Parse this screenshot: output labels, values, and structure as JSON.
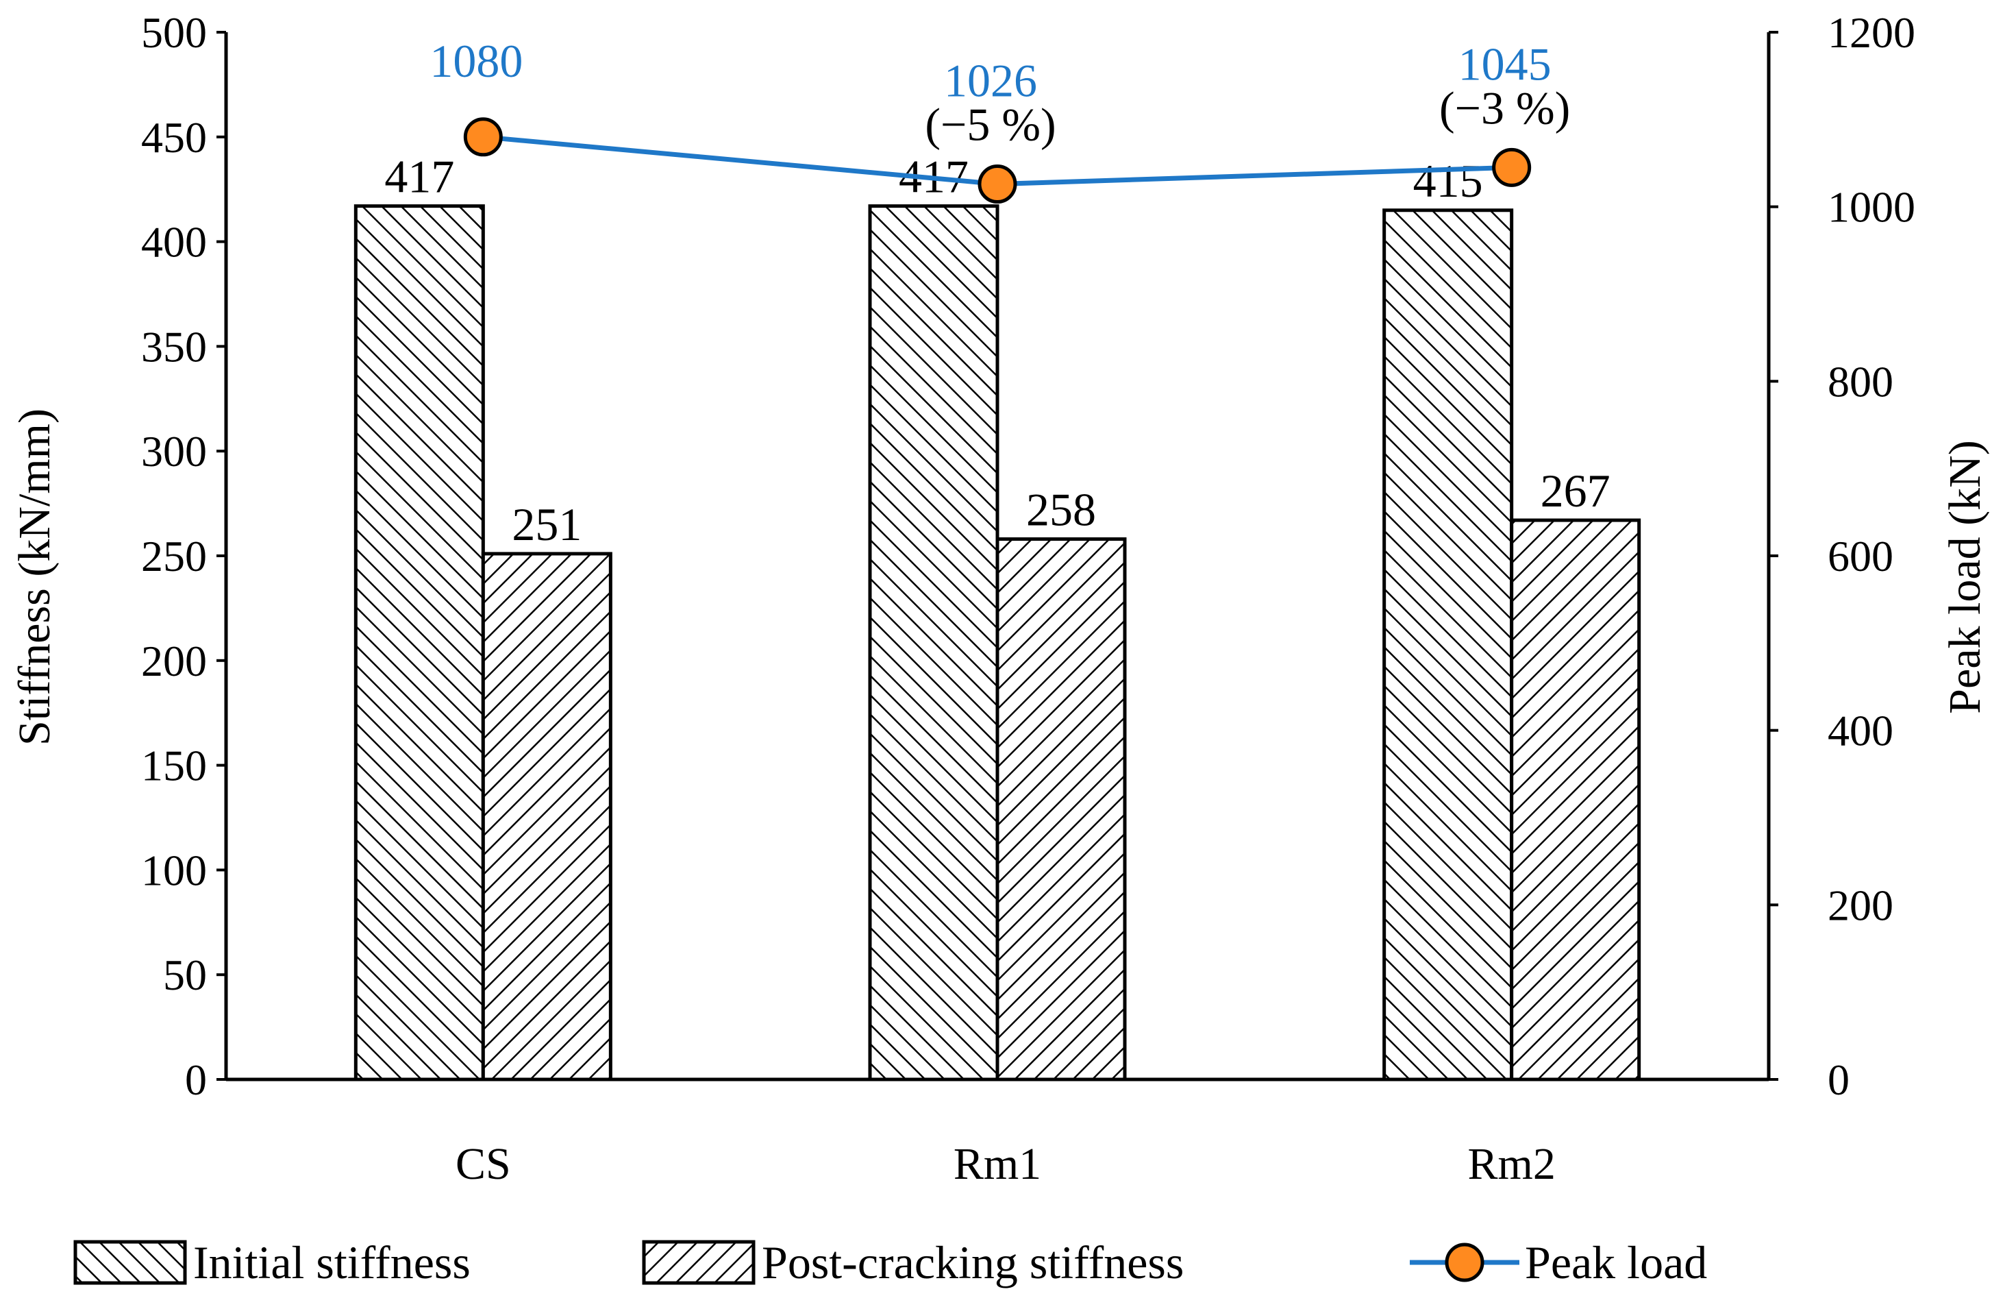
{
  "chart_data": {
    "type": "bar",
    "categories": [
      "CS",
      "Rm1",
      "Rm2"
    ],
    "series": [
      {
        "name": "Initial stiffness",
        "axis": "left",
        "kind": "bar",
        "pattern": "hatch-forward",
        "values": [
          417,
          417,
          415
        ]
      },
      {
        "name": "Post-cracking stiffness",
        "axis": "left",
        "kind": "bar",
        "pattern": "hatch-back",
        "values": [
          251,
          258,
          267
        ]
      },
      {
        "name": "Peak load",
        "axis": "right",
        "kind": "line",
        "values": [
          1080,
          1026,
          1045
        ]
      }
    ],
    "bar_labels": [
      [
        "417",
        "417",
        "415"
      ],
      [
        "251",
        "258",
        "267"
      ]
    ],
    "peak_labels": [
      "1080",
      "1026",
      "1045"
    ],
    "peak_change_labels": [
      "",
      "(−5 %)",
      "(−3 %)"
    ],
    "ylabel": "Stiffness (kN/mm)",
    "y2label": "Peak load (kN)",
    "ylim": [
      0,
      500
    ],
    "y2lim": [
      0,
      1200
    ],
    "yticks": [
      0,
      50,
      100,
      150,
      200,
      250,
      300,
      350,
      400,
      450,
      500
    ],
    "y2ticks": [
      0,
      200,
      400,
      600,
      800,
      1000,
      1200
    ],
    "legend": [
      "Initial stiffness",
      "Post-cracking stiffness",
      "Peak load"
    ],
    "legend_position": "bottom",
    "grid": false
  },
  "colors": {
    "line": "#1f78c8",
    "marker_fill": "#ff8a1f",
    "peak_label": "#1f78c8",
    "axis": "#000000"
  }
}
